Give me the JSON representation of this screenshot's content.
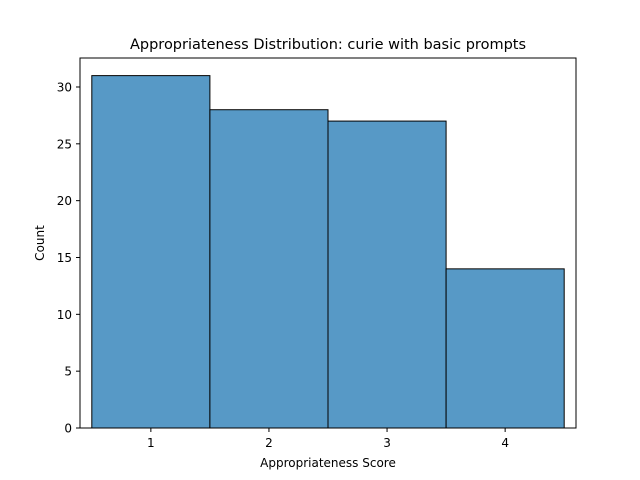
{
  "chart_data": {
    "type": "bar",
    "title": "Appropriateness Distribution: curie with basic prompts",
    "xlabel": "Appropriateness Score",
    "ylabel": "Count",
    "categories": [
      "1",
      "2",
      "3",
      "4"
    ],
    "values": [
      31,
      28,
      27,
      14
    ],
    "xlim": [
      0.4,
      4.6
    ],
    "ylim": [
      0,
      32.55
    ],
    "xticks": [
      1,
      2,
      3,
      4
    ],
    "yticks": [
      0,
      5,
      10,
      15,
      20,
      25,
      30
    ],
    "bar_color": "#5799c6",
    "edge_color": "#000000",
    "grid": false,
    "legend": "none"
  }
}
